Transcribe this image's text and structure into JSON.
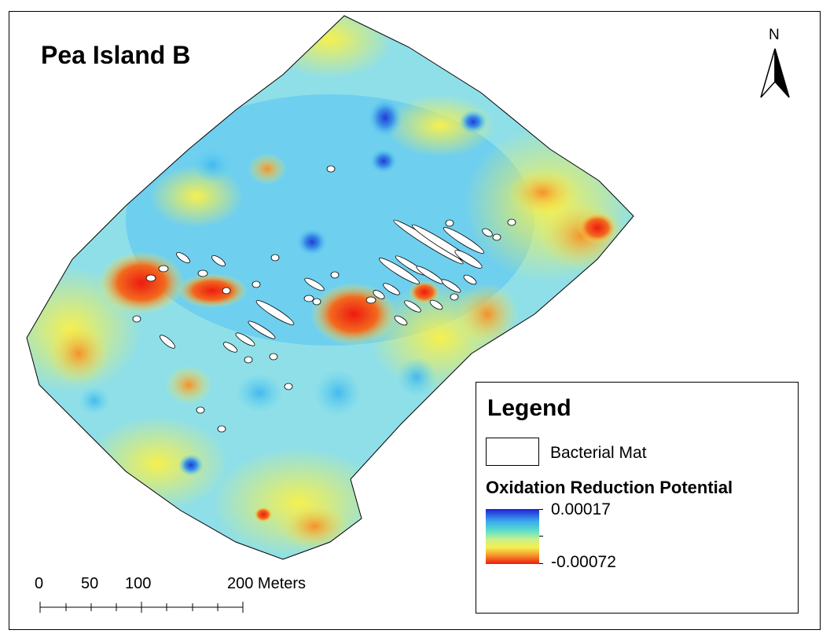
{
  "map": {
    "title": "Pea Island B",
    "north_label": "N",
    "scale_labels": [
      "0",
      "50",
      "100",
      "200 Meters"
    ]
  },
  "legend": {
    "title": "Legend",
    "mat_label": "Bacterial Mat",
    "orp_title": "Oxidation Reduction Potential",
    "orp_max": "0.00017",
    "orp_min": "-0.00072"
  },
  "colors": {
    "high": "#1f3fd6",
    "mid_cyan": "#5ad3f0",
    "mid_green": "#b7e88a",
    "mid_yellow": "#f5f050",
    "orange": "#f5902a",
    "low": "#ee1a10",
    "mat_fill": "#ffffff"
  }
}
